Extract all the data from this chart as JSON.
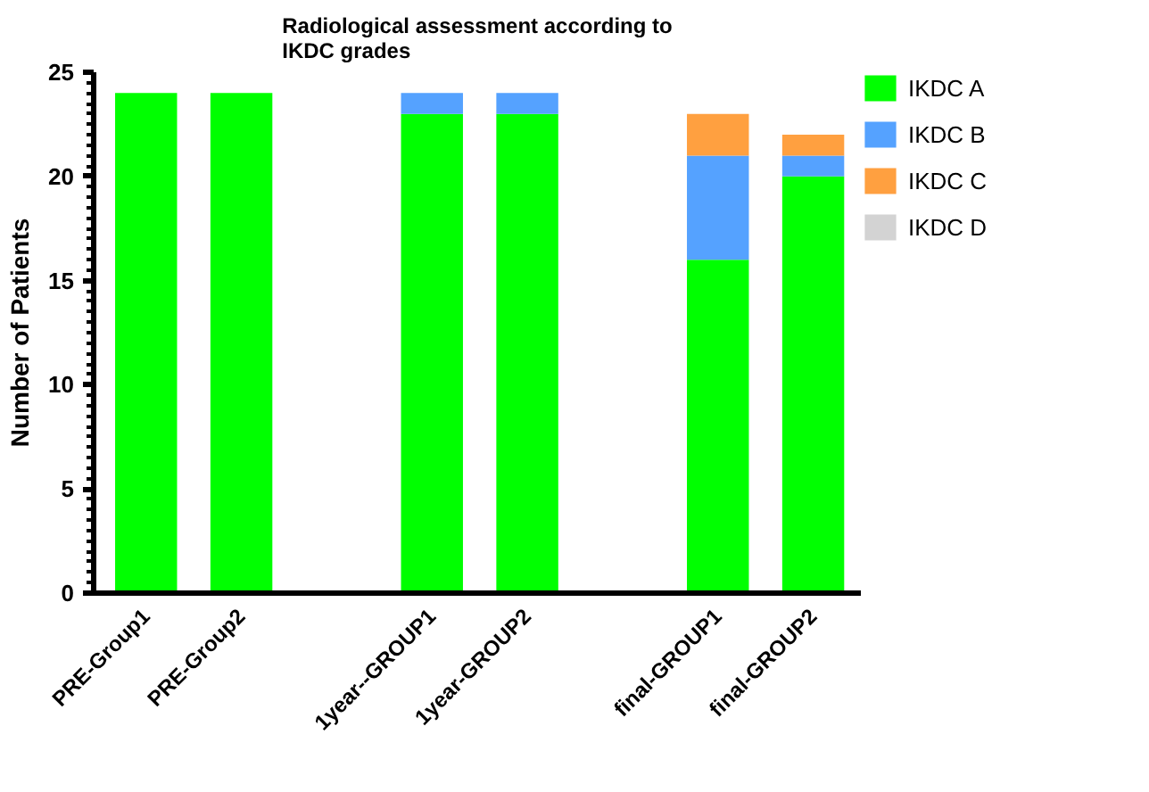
{
  "chart_data": {
    "type": "bar",
    "title": "Radiological assessment according to IKDC grades",
    "ylabel": "Number of Patients",
    "categories": [
      "PRE-Group1",
      "PRE-Group2",
      null,
      "1year--GROUP1",
      "1year-GROUP2",
      null,
      "final-GROUP1",
      "final-GROUP2"
    ],
    "stacked": true,
    "series": [
      {
        "name": "IKDC A",
        "color": "#00ff00",
        "values": [
          24,
          24,
          null,
          23,
          23,
          null,
          16,
          20
        ]
      },
      {
        "name": "IKDC B",
        "color": "#55a2ff",
        "values": [
          0,
          0,
          null,
          1,
          1,
          null,
          5,
          1
        ]
      },
      {
        "name": "IKDC C",
        "color": "#ffa040",
        "values": [
          0,
          0,
          null,
          0,
          0,
          null,
          2,
          1
        ]
      },
      {
        "name": "IKDC D",
        "color": "#d3d3d3",
        "values": [
          0,
          0,
          null,
          0,
          0,
          null,
          0,
          0
        ]
      }
    ],
    "ylim": [
      0,
      25
    ],
    "yticks": [
      0,
      {
        "value": 0.5,
        "label": null
      },
      {
        "value": 1,
        "label": null
      },
      {
        "value": 1.5,
        "label": null
      },
      {
        "value": 2,
        "label": null
      },
      {
        "value": 2.5,
        "label": null
      },
      {
        "value": 3,
        "label": null
      },
      {
        "value": 3.5,
        "label": null
      },
      {
        "value": 4,
        "label": null
      },
      {
        "value": 4.5,
        "label": null
      },
      5,
      {
        "value": 5.5,
        "label": null
      },
      {
        "value": 6,
        "label": null
      },
      {
        "value": 6.5,
        "label": null
      },
      {
        "value": 7,
        "label": null
      },
      {
        "value": 7.5,
        "label": null
      },
      {
        "value": 8,
        "label": null
      },
      {
        "value": 8.5,
        "label": null
      },
      {
        "value": 9,
        "label": null
      },
      {
        "value": 9.5,
        "label": null
      },
      10,
      {
        "value": 10.5,
        "label": null
      },
      {
        "value": 11,
        "label": null
      },
      {
        "value": 11.5,
        "label": null
      },
      {
        "value": 12,
        "label": null
      },
      {
        "value": 12.5,
        "label": null
      },
      {
        "value": 13,
        "label": null
      },
      {
        "value": 13.5,
        "label": null
      },
      {
        "value": 14,
        "label": null
      },
      {
        "value": 14.5,
        "label": null
      },
      15,
      {
        "value": 15.5,
        "label": null
      },
      {
        "value": 16,
        "label": null
      },
      {
        "value": 16.5,
        "label": null
      },
      {
        "value": 17,
        "label": null
      },
      {
        "value": 17.5,
        "label": null
      },
      {
        "value": 18,
        "label": null
      },
      {
        "value": 18.5,
        "label": null
      },
      {
        "value": 19,
        "label": null
      },
      {
        "value": 19.5,
        "label": null
      },
      20,
      {
        "value": 20.5,
        "label": null
      },
      {
        "value": 21,
        "label": null
      },
      {
        "value": 21.5,
        "label": null
      },
      {
        "value": 22,
        "label": null
      },
      {
        "value": 22.5,
        "label": null
      },
      {
        "value": 23,
        "label": null
      },
      {
        "value": 23.5,
        "label": null
      },
      {
        "value": 24,
        "label": null
      },
      {
        "value": 24.5,
        "label": null
      },
      25
    ],
    "grid": false,
    "legend": "right"
  }
}
